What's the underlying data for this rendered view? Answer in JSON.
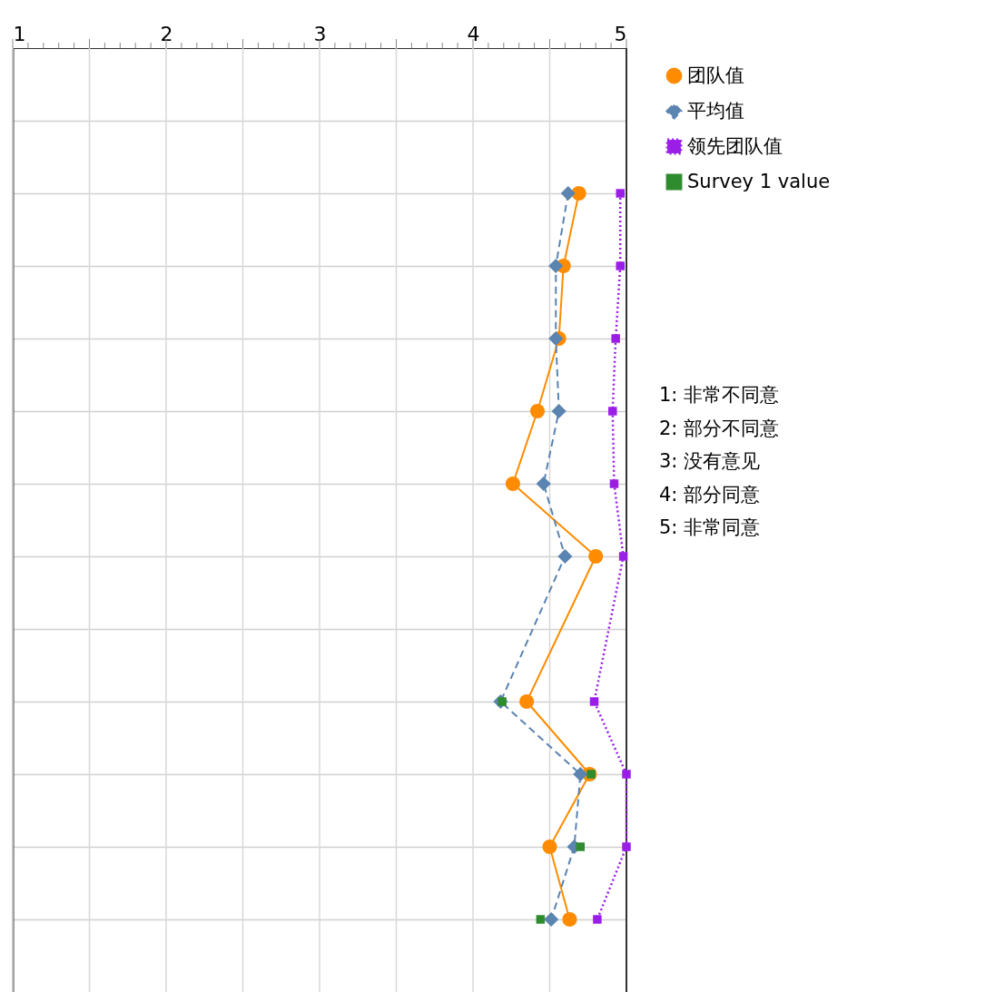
{
  "chart_data": {
    "type": "line",
    "orientation": "horizontal",
    "categories": [
      null,
      null,
      null,
      null,
      null,
      null,
      null,
      null,
      null,
      null,
      null,
      null
    ],
    "series": [
      {
        "name": "团队值",
        "color": "#ff8c00",
        "marker": "circle",
        "line_style": "solid",
        "values": [
          null,
          4.69,
          4.59,
          4.56,
          4.42,
          4.26,
          4.8,
          null,
          4.35,
          4.76,
          4.5,
          4.63
        ]
      },
      {
        "name": "平均值",
        "color": "#5b84b1",
        "marker": "diamond",
        "line_style": "dashed",
        "values": [
          null,
          4.62,
          4.54,
          4.54,
          4.56,
          4.46,
          4.6,
          null,
          4.18,
          4.7,
          4.66,
          4.51
        ]
      },
      {
        "name": "领先团队值",
        "color": "#9b1ee8",
        "marker": "square",
        "line_style": "dotted",
        "values": [
          null,
          4.96,
          4.96,
          4.93,
          4.91,
          4.92,
          4.98,
          null,
          4.79,
          5.0,
          5.0,
          4.81
        ]
      },
      {
        "name": "Survey 1 value",
        "type": "scatter",
        "color": "#2e8b2e",
        "marker": "square",
        "values": [
          null,
          null,
          null,
          null,
          null,
          null,
          null,
          null,
          4.19,
          4.77,
          4.7,
          4.44
        ]
      }
    ],
    "xlim": [
      1,
      5
    ],
    "xticks": [
      1,
      {
        "value": 1.1,
        "label": null
      },
      {
        "value": 1.2,
        "label": null
      },
      {
        "value": 1.3,
        "label": null
      },
      {
        "value": 1.4,
        "label": null
      },
      {
        "value": 1.5,
        "label": null
      },
      {
        "value": 1.6,
        "label": null
      },
      {
        "value": 1.7,
        "label": null
      },
      {
        "value": 1.8,
        "label": null
      },
      {
        "value": 1.9,
        "label": null
      },
      2,
      {
        "value": 2.1,
        "label": null
      },
      {
        "value": 2.2,
        "label": null
      },
      {
        "value": 2.3,
        "label": null
      },
      {
        "value": 2.4,
        "label": null
      },
      {
        "value": 2.5,
        "label": null
      },
      {
        "value": 2.6,
        "label": null
      },
      {
        "value": 2.7,
        "label": null
      },
      {
        "value": 2.8,
        "label": null
      },
      {
        "value": 2.9,
        "label": null
      },
      3,
      {
        "value": 3.1,
        "label": null
      },
      {
        "value": 3.2,
        "label": null
      },
      {
        "value": 3.3,
        "label": null
      },
      {
        "value": 3.4,
        "label": null
      },
      {
        "value": 3.5,
        "label": null
      },
      {
        "value": 3.6,
        "label": null
      },
      {
        "value": 3.7,
        "label": null
      },
      {
        "value": 3.8,
        "label": null
      },
      {
        "value": 3.9,
        "label": null
      },
      4,
      {
        "value": 4.1,
        "label": null
      },
      {
        "value": 4.2,
        "label": null
      },
      {
        "value": 4.3,
        "label": null
      },
      {
        "value": 4.4,
        "label": null
      },
      {
        "value": 4.5,
        "label": null
      },
      {
        "value": 4.6,
        "label": null
      },
      {
        "value": 4.7,
        "label": null
      },
      {
        "value": 4.8,
        "label": null
      },
      {
        "value": 4.9,
        "label": null
      },
      5
    ],
    "grid": true,
    "legend": "top right",
    "tick_labels": "x",
    "annotations": [
      "1: 非常不同意",
      "2: 部分不同意",
      "3: 没有意见",
      "4: 部分同意",
      "5: 非常同意"
    ]
  }
}
